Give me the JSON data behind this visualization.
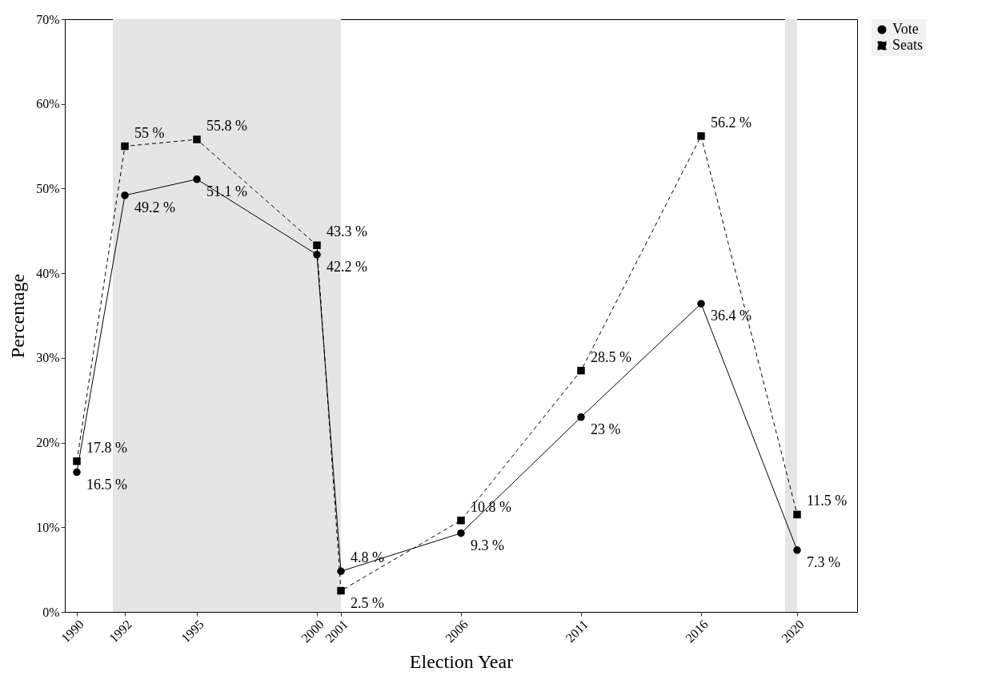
{
  "chart_data": {
    "type": "line",
    "xlabel": "Election Year",
    "ylabel": "Percentage",
    "x": [
      1990,
      1992,
      1995,
      2000,
      2001,
      2006,
      2011,
      2016,
      2020
    ],
    "series": [
      {
        "name": "Vote",
        "color": "#000000",
        "marker": "circle",
        "line_style": "solid",
        "values": [
          16.5,
          49.2,
          51.1,
          42.2,
          4.8,
          9.3,
          23,
          36.4,
          7.3
        ],
        "value_labels": [
          "16.5 %",
          "49.2 %",
          "51.1 %",
          "42.2 %",
          "4.8 %",
          "9.3 %",
          "23 %",
          "36.4 %",
          "7.3 %"
        ]
      },
      {
        "name": "Seats",
        "color": "#000000",
        "marker": "square",
        "line_style": "dashed",
        "values": [
          17.8,
          55,
          55.8,
          43.3,
          2.5,
          10.8,
          28.5,
          56.2,
          11.5
        ],
        "value_labels": [
          "17.8 %",
          "55 %",
          "55.8 %",
          "43.3 %",
          "2.5 %",
          "10.8 %",
          "28.5 %",
          "56.2 %",
          "11.5 %"
        ]
      }
    ],
    "xlim": [
      1989.5,
      2022.5
    ],
    "xticks": [
      1990,
      1992,
      1995,
      2000,
      2001,
      2006,
      2011,
      2016,
      2020
    ],
    "ylim": [
      0,
      70
    ],
    "yticks": [
      {
        "value": 0,
        "label": "0%"
      },
      {
        "value": 10,
        "label": "10%"
      },
      {
        "value": 20,
        "label": "20%"
      },
      {
        "value": 30,
        "label": "30%"
      },
      {
        "value": 40,
        "label": "40%"
      },
      {
        "value": 50,
        "label": "50%"
      },
      {
        "value": 60,
        "label": "60%"
      },
      {
        "value": 70,
        "label": "70%"
      }
    ],
    "bands": [
      {
        "axis": "x",
        "from": 1991.5,
        "to": 2001,
        "color": "#e5e5e5"
      },
      {
        "axis": "x",
        "from": 2019.5,
        "to": 2020,
        "color": "#e5e5e5"
      }
    ],
    "grid": false,
    "legend": "right"
  }
}
